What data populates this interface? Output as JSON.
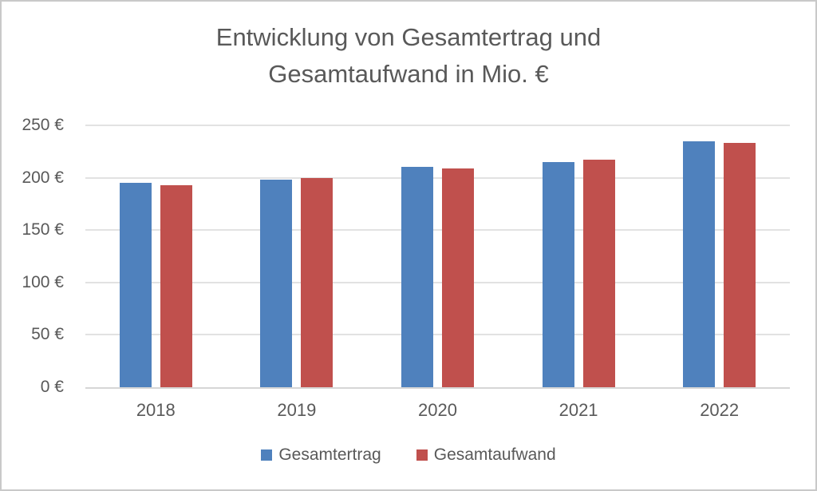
{
  "title": {
    "line1": "Entwicklung von Gesamtertrag und",
    "line2": "Gesamtaufwand in Mio. €"
  },
  "colors": {
    "series_blue": "#4f81bd",
    "series_red": "#c0504d",
    "text": "#595959",
    "gridline": "#e2e2e2",
    "axis_line": "#d6d6d6",
    "canvas_border": "#c9c9c9"
  },
  "chart_data": {
    "type": "bar",
    "title": "Entwicklung von Gesamtertrag und Gesamtaufwand in Mio. €",
    "categories": [
      "2018",
      "2019",
      "2020",
      "2021",
      "2022"
    ],
    "series": [
      {
        "name": "Gesamtertrag",
        "color": "#4f81bd",
        "values": [
          195,
          198,
          210,
          215,
          235
        ]
      },
      {
        "name": "Gesamtaufwand",
        "color": "#c0504d",
        "values": [
          193,
          200,
          209,
          217,
          233
        ]
      }
    ],
    "xlabel": "",
    "ylabel": "",
    "ylim": [
      0,
      250
    ],
    "y_ticks": [
      {
        "value": 0,
        "label": "0 €"
      },
      {
        "value": 50,
        "label": "50 €"
      },
      {
        "value": 100,
        "label": "100 €"
      },
      {
        "value": 150,
        "label": "150 €"
      },
      {
        "value": 200,
        "label": "200 €"
      },
      {
        "value": 250,
        "label": "250 €"
      }
    ],
    "grid": true,
    "legend_position": "bottom"
  }
}
